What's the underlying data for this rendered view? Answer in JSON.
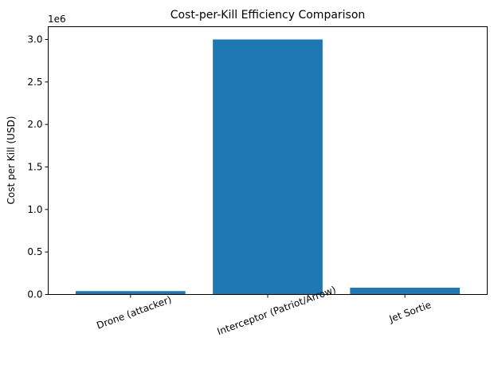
{
  "chart_data": {
    "type": "bar",
    "title": "Cost-per-Kill Efficiency Comparison",
    "xlabel": "",
    "ylabel": "Cost per Kill (USD)",
    "categories": [
      "Drone (attacker)",
      "Interceptor (Patriot/Arrow)",
      "Jet Sortie"
    ],
    "values": [
      40000,
      3000000,
      80000
    ],
    "ylim": [
      0,
      3150000
    ],
    "yticks": [
      0,
      500000,
      1000000,
      1500000,
      2000000,
      2500000,
      3000000
    ],
    "ytick_labels": [
      "0.0",
      "0.5",
      "1.0",
      "1.5",
      "2.0",
      "2.5",
      "3.0"
    ],
    "offset_label": "1e6",
    "bar_color": "#1f77b4",
    "grid": false,
    "xtick_rotation": 20
  }
}
